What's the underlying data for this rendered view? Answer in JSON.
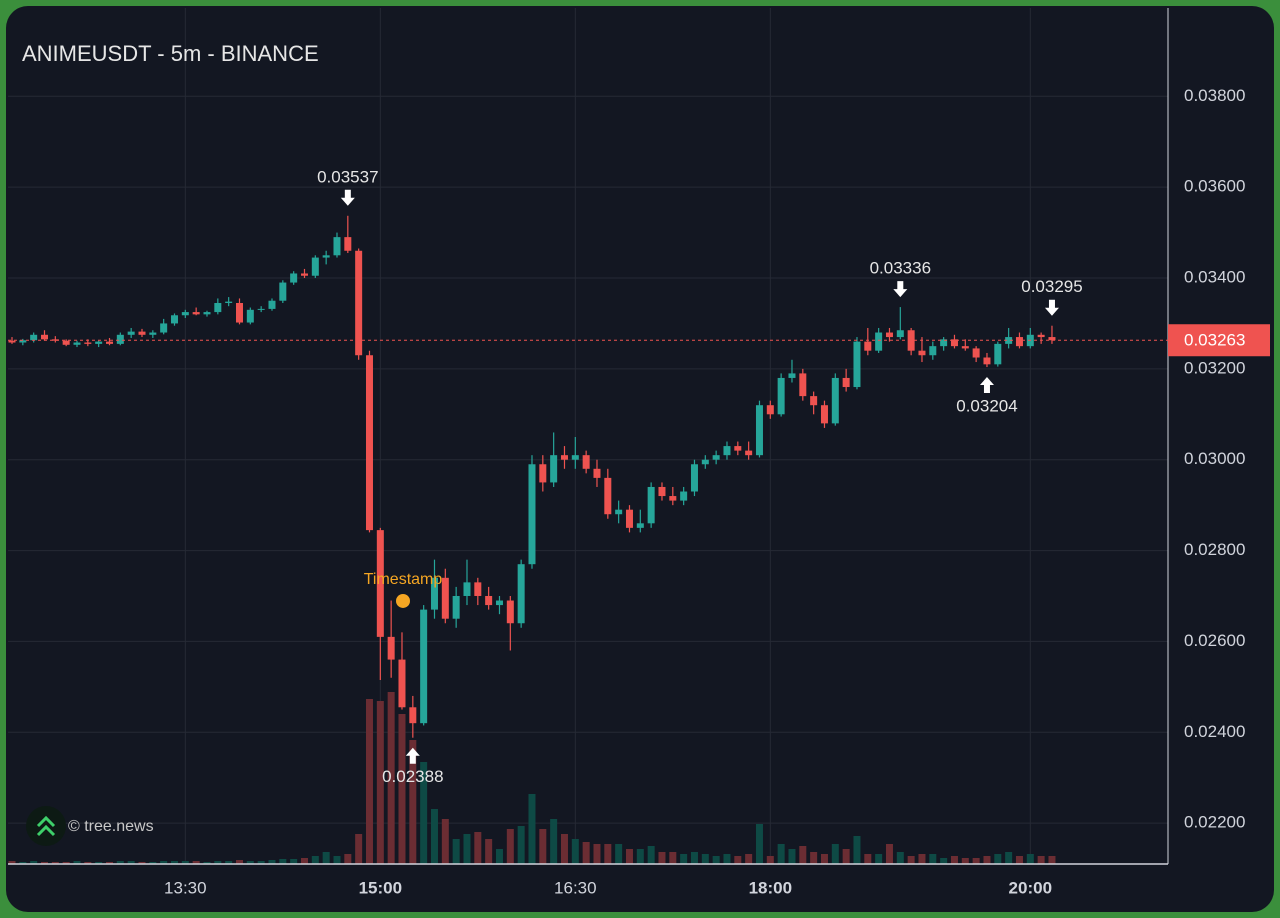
{
  "chart_data": {
    "type": "candlestick",
    "title": "ANIMEUSDT - 5m - BINANCE",
    "watermark": "© tree.news",
    "categories": [
      null,
      null,
      null,
      null,
      null,
      null,
      null,
      null,
      null,
      null,
      null,
      null,
      null,
      null,
      null,
      null,
      "13:30",
      null,
      null,
      null,
      null,
      null,
      null,
      null,
      null,
      null,
      null,
      null,
      null,
      null,
      null,
      null,
      null,
      null,
      "15:00",
      null,
      null,
      null,
      null,
      null,
      null,
      null,
      null,
      null,
      null,
      null,
      null,
      null,
      null,
      null,
      null,
      null,
      "16:30",
      null,
      null,
      null,
      null,
      null,
      null,
      null,
      null,
      null,
      null,
      null,
      null,
      null,
      null,
      null,
      null,
      null,
      "18:00",
      null,
      null,
      null,
      null,
      null,
      null,
      null,
      null,
      null,
      null,
      null,
      null,
      null,
      null,
      null,
      null,
      null,
      null,
      null,
      null,
      null,
      null,
      null,
      "20:00",
      null,
      null
    ],
    "open": [
      0.03262,
      0.03258,
      0.03263,
      0.03275,
      0.03265,
      0.03262,
      0.03253,
      0.03258,
      0.03255,
      0.0326,
      0.03255,
      0.03275,
      0.03282,
      0.03275,
      0.0328,
      0.033,
      0.03318,
      0.03325,
      0.0332,
      0.03325,
      0.03345,
      0.03345,
      0.03302,
      0.0333,
      0.03332,
      0.0335,
      0.0339,
      0.0341,
      0.03405,
      0.03445,
      0.0345,
      0.0349,
      0.0346,
      0.0323,
      0.02845,
      0.0261,
      0.0256,
      0.02455,
      0.0242,
      0.0267,
      0.0274,
      0.0265,
      0.027,
      0.0273,
      0.027,
      0.0268,
      0.0269,
      0.0264,
      0.0277,
      0.0299,
      0.0295,
      0.0301,
      0.03,
      0.0301,
      0.0298,
      0.0296,
      0.0288,
      0.0289,
      0.0285,
      0.0286,
      0.0294,
      0.0292,
      0.0291,
      0.0293,
      0.0299,
      0.03,
      0.0301,
      0.0303,
      0.0302,
      0.0301,
      0.0312,
      0.031,
      0.0318,
      0.0319,
      0.0314,
      0.0312,
      0.0308,
      0.0318,
      0.0316,
      0.0326,
      0.0324,
      0.0328,
      0.0327,
      0.03285,
      0.0324,
      0.0323,
      0.0325,
      0.03265,
      0.0325,
      0.03245,
      0.03225,
      0.0321,
      0.03255,
      0.0327,
      0.0325,
      0.03275,
      0.0327
    ],
    "high": [
      0.0327,
      0.03266,
      0.0328,
      0.03285,
      0.03272,
      0.03265,
      0.03262,
      0.03265,
      0.03262,
      0.03268,
      0.0328,
      0.0329,
      0.03288,
      0.03285,
      0.0331,
      0.03322,
      0.0333,
      0.03335,
      0.03328,
      0.03355,
      0.03358,
      0.03355,
      0.03335,
      0.03338,
      0.03355,
      0.03395,
      0.03415,
      0.0342,
      0.0345,
      0.0346,
      0.035,
      0.03537,
      0.03465,
      0.0324,
      0.0285,
      0.0269,
      0.0262,
      0.0248,
      0.0268,
      0.0278,
      0.0276,
      0.0272,
      0.0278,
      0.0274,
      0.0272,
      0.027,
      0.027,
      0.0278,
      0.0301,
      0.0301,
      0.0306,
      0.0303,
      0.0305,
      0.0302,
      0.03,
      0.0298,
      0.0291,
      0.029,
      0.0289,
      0.0295,
      0.0295,
      0.0294,
      0.0294,
      0.03,
      0.0301,
      0.0302,
      0.0304,
      0.0304,
      0.0304,
      0.0313,
      0.0313,
      0.0319,
      0.0322,
      0.032,
      0.0315,
      0.0313,
      0.0319,
      0.032,
      0.0327,
      0.0329,
      0.0329,
      0.0329,
      0.03336,
      0.0329,
      0.0327,
      0.0326,
      0.0327,
      0.03275,
      0.03265,
      0.0325,
      0.03235,
      0.0326,
      0.0329,
      0.0328,
      0.0329,
      0.0328,
      0.03295
    ],
    "low": [
      0.03255,
      0.03252,
      0.03258,
      0.03262,
      0.03258,
      0.0325,
      0.03248,
      0.0325,
      0.03248,
      0.03252,
      0.03252,
      0.03268,
      0.0327,
      0.03268,
      0.03276,
      0.03295,
      0.03312,
      0.03318,
      0.03315,
      0.0332,
      0.03338,
      0.03298,
      0.03298,
      0.03325,
      0.03328,
      0.03345,
      0.03385,
      0.034,
      0.034,
      0.0343,
      0.03445,
      0.03455,
      0.0322,
      0.0284,
      0.02515,
      0.0252,
      0.0245,
      0.02388,
      0.02415,
      0.0265,
      0.0264,
      0.0263,
      0.0268,
      0.0268,
      0.0267,
      0.0266,
      0.0258,
      0.0263,
      0.0276,
      0.0293,
      0.0294,
      0.0298,
      0.0298,
      0.0297,
      0.0294,
      0.0287,
      0.0286,
      0.0284,
      0.0284,
      0.0285,
      0.0291,
      0.029,
      0.029,
      0.0292,
      0.0298,
      0.0299,
      0.03,
      0.0301,
      0.03,
      0.03005,
      0.0309,
      0.03095,
      0.0317,
      0.0313,
      0.031,
      0.0307,
      0.03075,
      0.0315,
      0.03155,
      0.0323,
      0.03235,
      0.0326,
      0.03265,
      0.0323,
      0.03215,
      0.0322,
      0.0324,
      0.03245,
      0.0324,
      0.03215,
      0.03204,
      0.03205,
      0.03245,
      0.03245,
      0.03245,
      0.03255,
      0.03255
    ],
    "close": [
      0.03258,
      0.03263,
      0.03275,
      0.03265,
      0.03262,
      0.03253,
      0.03258,
      0.03255,
      0.0326,
      0.03255,
      0.03275,
      0.03282,
      0.03275,
      0.0328,
      0.033,
      0.03318,
      0.03325,
      0.0332,
      0.03325,
      0.03345,
      0.03348,
      0.03302,
      0.0333,
      0.03332,
      0.0335,
      0.0339,
      0.0341,
      0.03405,
      0.03445,
      0.0345,
      0.0349,
      0.0346,
      0.0323,
      0.02845,
      0.0261,
      0.0256,
      0.02455,
      0.0242,
      0.0267,
      0.0274,
      0.0265,
      0.027,
      0.0273,
      0.027,
      0.0268,
      0.0269,
      0.0264,
      0.0277,
      0.0299,
      0.0295,
      0.0301,
      0.03,
      0.0301,
      0.0298,
      0.0296,
      0.0288,
      0.0289,
      0.0285,
      0.0286,
      0.0294,
      0.0292,
      0.0291,
      0.0293,
      0.0299,
      0.03,
      0.0301,
      0.0303,
      0.0302,
      0.0301,
      0.0312,
      0.031,
      0.0318,
      0.0319,
      0.0314,
      0.0312,
      0.0308,
      0.0318,
      0.0316,
      0.0326,
      0.0324,
      0.0328,
      0.0327,
      0.03285,
      0.0324,
      0.0323,
      0.0325,
      0.03265,
      0.0325,
      0.03245,
      0.03225,
      0.0321,
      0.03255,
      0.0327,
      0.0325,
      0.03275,
      0.0327,
      0.03263
    ],
    "volume": [
      3,
      2,
      3,
      2,
      2,
      2,
      3,
      2,
      2,
      2,
      3,
      3,
      2,
      2,
      3,
      3,
      3,
      3,
      2,
      3,
      3,
      4,
      3,
      3,
      4,
      5,
      5,
      6,
      8,
      12,
      8,
      10,
      30,
      165,
      163,
      172,
      150,
      124,
      102,
      55,
      45,
      25,
      30,
      32,
      25,
      15,
      35,
      38,
      70,
      35,
      45,
      30,
      25,
      22,
      20,
      20,
      20,
      15,
      15,
      18,
      12,
      12,
      10,
      12,
      10,
      8,
      10,
      8,
      10,
      40,
      8,
      20,
      15,
      18,
      12,
      10,
      20,
      15,
      28,
      10,
      10,
      20,
      12,
      8,
      10,
      10,
      6,
      8,
      6,
      6,
      8,
      10,
      12,
      8,
      10,
      8,
      8
    ],
    "ylim": [
      0.0211,
      0.0399
    ],
    "yticks": [
      {
        "value": 0.022,
        "label": "0.02200"
      },
      {
        "value": 0.024,
        "label": "0.02400"
      },
      {
        "value": 0.026,
        "label": "0.02600"
      },
      {
        "value": 0.028,
        "label": "0.02800"
      },
      {
        "value": 0.03,
        "label": "0.03000"
      },
      {
        "value": 0.032,
        "label": "0.03200"
      },
      {
        "value": 0.034,
        "label": "0.03400"
      },
      {
        "value": 0.036,
        "label": "0.03600"
      },
      {
        "value": 0.038,
        "label": "0.03800"
      }
    ],
    "grid": true,
    "last_price": 0.03263,
    "marked_highs": [
      0.03537,
      0.03336,
      0.03295
    ],
    "marked_lows": [
      0.02388,
      0.03204
    ],
    "timestamp_marker": {
      "label": "Timestamp",
      "price": 0.02689,
      "color": "#f5a623"
    },
    "up_color": "#26a69a",
    "down_color": "#ef5350",
    "volume_up_color": "#0e4a45",
    "volume_down_color": "#6b2d33"
  }
}
